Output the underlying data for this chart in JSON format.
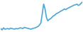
{
  "values": [
    7.7,
    7.5,
    7.8,
    7.6,
    7.65,
    7.7,
    7.6,
    7.75,
    7.7,
    7.65,
    7.6,
    7.7,
    7.65,
    7.7,
    7.8,
    7.75,
    7.7,
    7.85,
    7.8,
    7.75,
    7.7,
    7.65,
    7.6,
    7.7,
    7.75,
    7.8,
    7.9,
    8.0,
    8.2,
    8.5,
    9.8,
    11.2,
    10.5,
    9.3,
    8.8,
    9.0,
    9.1,
    9.3,
    9.5,
    9.6,
    9.8,
    9.9,
    10.0,
    10.15,
    10.25,
    10.35,
    10.5,
    10.4,
    10.55,
    10.65,
    10.75,
    10.85,
    10.95,
    11.05,
    11.1,
    11.2,
    11.0,
    11.1,
    11.3,
    11.5
  ],
  "line_color": "#4da6d8",
  "background_color": "#ffffff",
  "linewidth": 1.2
}
